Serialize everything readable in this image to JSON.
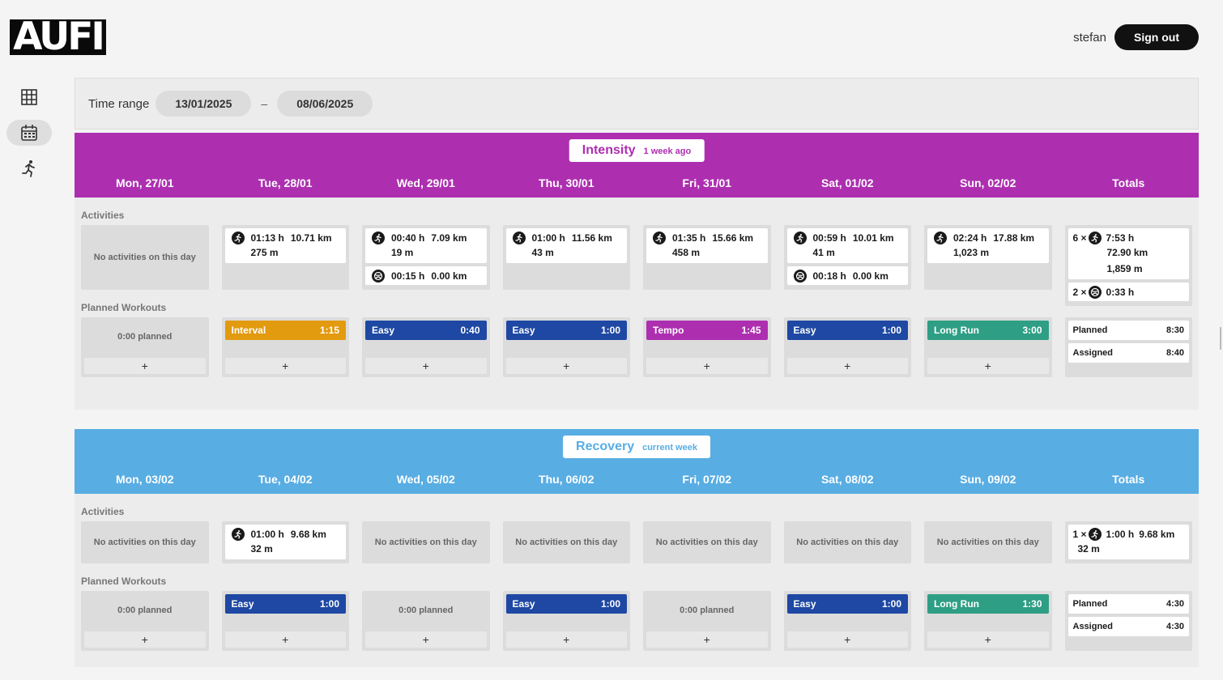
{
  "app": {
    "logo": "AUFI"
  },
  "header": {
    "username": "stefan",
    "signout": "Sign out"
  },
  "sidebar": {
    "items": [
      {
        "name": "grid",
        "icon": "grid-icon",
        "active": false
      },
      {
        "name": "calendar",
        "icon": "calendar-icon",
        "active": true
      },
      {
        "name": "running",
        "icon": "runner-icon",
        "active": false
      }
    ]
  },
  "timerange": {
    "label": "Time range",
    "start": "13/01/2025",
    "separator": "–",
    "end": "08/06/2025"
  },
  "colors": {
    "intensity": "#ad2fb0",
    "recovery": "#58ade3",
    "interval": "#e29a0f",
    "easy": "#1e48a3",
    "tempo": "#ad2fb0",
    "long_run": "#2e9e84"
  },
  "weeks": [
    {
      "title": "Intensity",
      "subtitle": "1 week ago",
      "days": [
        "Mon, 27/01",
        "Tue, 28/01",
        "Wed, 29/01",
        "Thu, 30/01",
        "Fri, 31/01",
        "Sat, 01/02",
        "Sun, 02/02",
        "Totals"
      ],
      "activities_label": "Activities",
      "planned_label": "Planned Workouts",
      "empty_text": "No activities on this day",
      "activities": [
        [],
        [
          {
            "sport": "run",
            "time": "01:13 h",
            "dist": "10.71 km",
            "elev": "275 m"
          }
        ],
        [
          {
            "sport": "run",
            "time": "00:40 h",
            "dist": "7.09 km",
            "elev": "19 m"
          },
          {
            "sport": "other",
            "time": "00:15 h",
            "dist": "0.00 km"
          }
        ],
        [
          {
            "sport": "run",
            "time": "01:00 h",
            "dist": "11.56 km",
            "elev": "43 m"
          }
        ],
        [
          {
            "sport": "run",
            "time": "01:35 h",
            "dist": "15.66 km",
            "elev": "458 m"
          }
        ],
        [
          {
            "sport": "run",
            "time": "00:59 h",
            "dist": "10.01 km",
            "elev": "41 m"
          },
          {
            "sport": "other",
            "time": "00:18 h",
            "dist": "0.00 km"
          }
        ],
        [
          {
            "sport": "run",
            "time": "02:24 h",
            "dist": "17.88 km",
            "elev": "1,023 m"
          }
        ]
      ],
      "activity_totals": [
        {
          "count": "6 ×",
          "sport": "run",
          "time": "7:53 h",
          "dist": "72.90 km",
          "elev": "1,859 m"
        },
        {
          "count": "2 ×",
          "sport": "other",
          "time": "0:33 h"
        }
      ],
      "planned": [
        null,
        {
          "name": "Interval",
          "duration": "1:15",
          "type": "interval"
        },
        {
          "name": "Easy",
          "duration": "0:40",
          "type": "easy"
        },
        {
          "name": "Easy",
          "duration": "1:00",
          "type": "easy"
        },
        {
          "name": "Tempo",
          "duration": "1:45",
          "type": "tempo"
        },
        {
          "name": "Easy",
          "duration": "1:00",
          "type": "easy"
        },
        {
          "name": "Long Run",
          "duration": "3:00",
          "type": "long_run"
        }
      ],
      "planned_empty": "0:00 planned",
      "plan_totals": [
        {
          "label": "Planned",
          "value": "8:30"
        },
        {
          "label": "Assigned",
          "value": "8:40"
        }
      ]
    },
    {
      "title": "Recovery",
      "subtitle": "current week",
      "days": [
        "Mon, 03/02",
        "Tue, 04/02",
        "Wed, 05/02",
        "Thu, 06/02",
        "Fri, 07/02",
        "Sat, 08/02",
        "Sun, 09/02",
        "Totals"
      ],
      "activities_label": "Activities",
      "planned_label": "Planned Workouts",
      "empty_text": "No activities on this day",
      "activities": [
        [],
        [
          {
            "sport": "run",
            "time": "01:00 h",
            "dist": "9.68 km",
            "elev": "32 m"
          }
        ],
        [],
        [],
        [],
        [],
        []
      ],
      "activity_totals": [
        {
          "count": "1 ×",
          "sport": "run",
          "time": "1:00 h",
          "dist": "9.68 km",
          "elev": "32 m",
          "inline": true
        }
      ],
      "planned": [
        null,
        {
          "name": "Easy",
          "duration": "1:00",
          "type": "easy"
        },
        null,
        {
          "name": "Easy",
          "duration": "1:00",
          "type": "easy"
        },
        null,
        {
          "name": "Easy",
          "duration": "1:00",
          "type": "easy"
        },
        {
          "name": "Long Run",
          "duration": "1:30",
          "type": "long_run"
        }
      ],
      "planned_empty": "0:00 planned",
      "plan_totals": [
        {
          "label": "Planned",
          "value": "4:30"
        },
        {
          "label": "Assigned",
          "value": "4:30"
        }
      ]
    }
  ],
  "plus_label": "+"
}
